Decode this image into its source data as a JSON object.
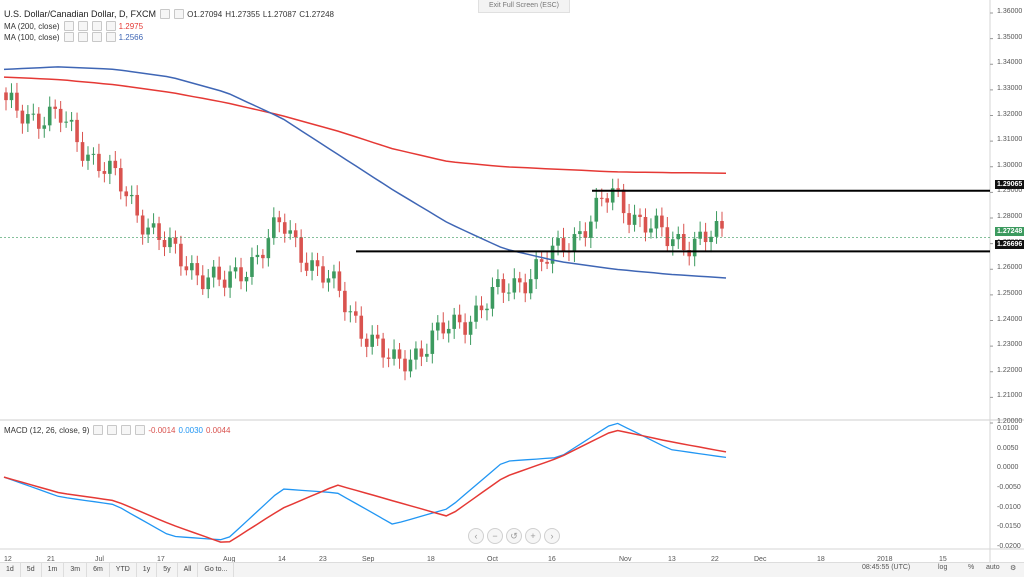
{
  "exit_fullscreen": "Exit Full Screen (ESC)",
  "legend": {
    "symbol": "U.S. Dollar/Canadian Dollar, D, FXCM",
    "ohlc": {
      "o": "O1.27094",
      "h": "H1.27355",
      "l": "L1.27087",
      "c": "C1.27248"
    },
    "ma200": {
      "label": "MA (200, close)",
      "value": "1.2975"
    },
    "ma100": {
      "label": "MA (100, close)",
      "value": "1.2566"
    },
    "macd": {
      "label": "MACD (12, 26, close, 9)",
      "hist": "-0.0014",
      "macd": "0.0030",
      "signal": "0.0044"
    }
  },
  "price_axis": [
    "1.36000",
    "1.35000",
    "1.34000",
    "1.33000",
    "1.32000",
    "1.31000",
    "1.30000",
    "1.29000",
    "1.28000",
    "1.27000",
    "1.26000",
    "1.25000",
    "1.24000",
    "1.23000",
    "1.22000",
    "1.21000",
    "1.20000"
  ],
  "price_tags": {
    "resistance": "1.29065",
    "last": "1.27248",
    "support": "1.26696"
  },
  "macd_axis": [
    "0.0100",
    "0.0050",
    "0.0000",
    "-0.0050",
    "-0.0100",
    "-0.0150",
    "-0.0200"
  ],
  "time_axis": [
    "12",
    "21",
    "Jul",
    "17",
    "Aug",
    "14",
    "23",
    "Sep",
    "18",
    "Oct",
    "16",
    "Nov",
    "13",
    "22",
    "Dec",
    "18",
    "2018",
    "15"
  ],
  "timeframes": [
    "1d",
    "5d",
    "1m",
    "3m",
    "6m",
    "YTD",
    "1y",
    "5y",
    "All",
    "Go to..."
  ],
  "clock": "08:45:55 (UTC)",
  "controls": {
    "pct": "%",
    "log": "log",
    "auto": "auto"
  },
  "colors": {
    "up": "#3c9a5f",
    "down": "#d9534f",
    "ma200": "#e53935",
    "ma100": "#3f66b5",
    "macd": "#2196f3",
    "signal": "#e53935"
  },
  "chart_data": [
    {
      "type": "candlestick",
      "title": "U.S. Dollar/Canadian Dollar, D, FXCM",
      "ylim": [
        1.2,
        1.36
      ],
      "x": [
        "12",
        "21",
        "Jul",
        "17",
        "Aug",
        "14",
        "23",
        "Sep",
        "18",
        "Oct",
        "16",
        "Nov",
        "13",
        "22"
      ],
      "levels": {
        "resistance": 1.29065,
        "support": 1.26696
      },
      "series": [
        {
          "name": "MA (200, close)",
          "last": 1.2975,
          "y": [
            1.335,
            1.334,
            1.332,
            1.329,
            1.325,
            1.32,
            1.314,
            1.307,
            1.302,
            1.3,
            1.299,
            1.298,
            1.2977,
            1.2975
          ]
        },
        {
          "name": "MA (100, close)",
          "last": 1.2566,
          "y": [
            1.338,
            1.339,
            1.338,
            1.335,
            1.329,
            1.319,
            1.305,
            1.291,
            1.278,
            1.268,
            1.263,
            1.26,
            1.258,
            1.2566
          ]
        }
      ],
      "close": [
        1.323,
        1.318,
        1.294,
        1.266,
        1.253,
        1.277,
        1.251,
        1.222,
        1.236,
        1.251,
        1.266,
        1.289,
        1.271,
        1.2725
      ]
    },
    {
      "type": "line",
      "title": "MACD (12, 26, close, 9)",
      "ylim": [
        -0.02,
        0.012
      ],
      "x": [
        "12",
        "21",
        "Jul",
        "17",
        "Aug",
        "14",
        "23",
        "Sep",
        "18",
        "Oct",
        "16",
        "Nov",
        "13",
        "22"
      ],
      "series": [
        {
          "name": "MACD",
          "y": [
            -0.002,
            -0.007,
            -0.009,
            -0.017,
            -0.018,
            -0.005,
            -0.006,
            -0.014,
            -0.01,
            0.002,
            0.003,
            0.012,
            0.005,
            0.003
          ]
        },
        {
          "name": "Signal",
          "y": [
            -0.002,
            -0.006,
            -0.008,
            -0.014,
            -0.019,
            -0.01,
            -0.004,
            -0.008,
            -0.012,
            -0.002,
            0.003,
            0.01,
            0.007,
            0.0044
          ]
        }
      ]
    }
  ]
}
